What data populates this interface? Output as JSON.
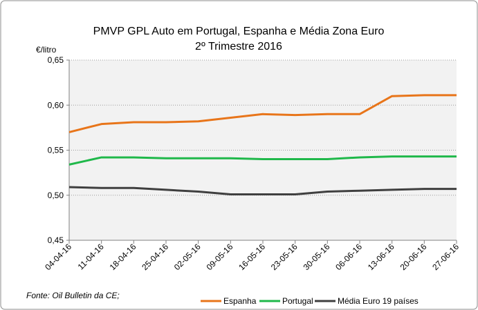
{
  "chart_data": {
    "type": "line",
    "title": "PMVP GPL Auto em Portugal, Espanha e Média Zona Euro",
    "subtitle": "2º Trimestre 2016",
    "y_label": "€/litro",
    "source": "Fonte: Oil Bulletin da CE;",
    "categories": [
      "04-04-16",
      "11-04-16",
      "18-04-16",
      "25-04-16",
      "02-05-16",
      "09-05-16",
      "16-05-16",
      "23-05-16",
      "30-05-16",
      "06-06-16",
      "13-06-16",
      "20-06-16",
      "27-06-16"
    ],
    "series": [
      {
        "name": "Espanha",
        "color": "#e8751a",
        "values": [
          0.57,
          0.579,
          0.581,
          0.581,
          0.582,
          0.586,
          0.59,
          0.589,
          0.59,
          0.59,
          0.61,
          0.611,
          0.611
        ]
      },
      {
        "name": "Portugal",
        "color": "#1fb84a",
        "values": [
          0.534,
          0.542,
          0.542,
          0.541,
          0.541,
          0.541,
          0.54,
          0.54,
          0.54,
          0.542,
          0.543,
          0.543,
          0.543
        ]
      },
      {
        "name": "Média Euro 19 países",
        "color": "#3f3f3f",
        "values": [
          0.509,
          0.508,
          0.508,
          0.506,
          0.504,
          0.501,
          0.501,
          0.501,
          0.504,
          0.505,
          0.506,
          0.507,
          0.507
        ]
      }
    ],
    "ylim": [
      0.45,
      0.65
    ],
    "yticks": [
      {
        "value": 0.45,
        "label": "0,45"
      },
      {
        "value": 0.5,
        "label": "0,50"
      },
      {
        "value": 0.55,
        "label": "0,55"
      },
      {
        "value": 0.6,
        "label": "0,60"
      },
      {
        "value": 0.65,
        "label": "0,65"
      }
    ],
    "grid": true,
    "legend": "bottom-right"
  }
}
